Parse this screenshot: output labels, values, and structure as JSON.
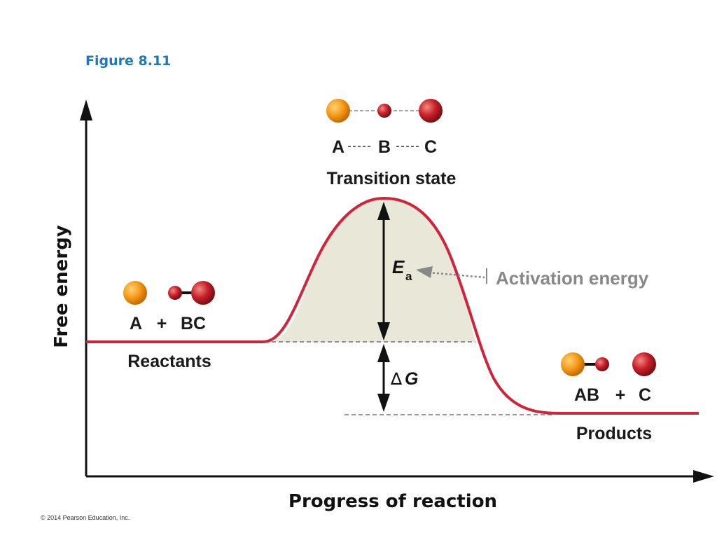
{
  "figure_label": "Figure 8.11",
  "axes": {
    "y_label": "Free energy",
    "x_label": "Progress of reaction"
  },
  "transition_state": {
    "formula_a": "A",
    "formula_b": "B",
    "formula_c": "C",
    "label": "Transition state"
  },
  "reactants": {
    "formula_a": "A",
    "plus": "+",
    "formula_bc": "BC",
    "label": "Reactants"
  },
  "products": {
    "formula_ab": "AB",
    "plus": "+",
    "formula_c": "C",
    "label": "Products"
  },
  "activation": {
    "symbol": "E",
    "subscript": "a",
    "label": "Activation energy"
  },
  "delta_g": {
    "symbol": "∆",
    "variable": "G"
  },
  "copyright": "© 2014 Pearson Education, Inc.",
  "colors": {
    "curve": "#d0243c",
    "fill": "#e9e7d8",
    "atom_a": "#f59c1a",
    "atom_bc": "#c8202a",
    "annotation": "#888888",
    "figure_label": "#1f77b4"
  }
}
